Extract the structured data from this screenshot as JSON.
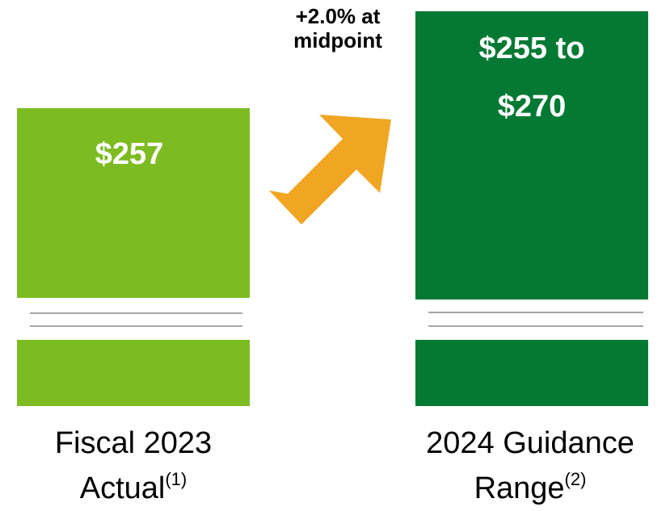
{
  "annotation": [
    "+2.0% at",
    "midpoint"
  ],
  "bars": [
    {
      "value_label": [
        "$257"
      ],
      "category": [
        "Fiscal 2023",
        "Actual"
      ],
      "note": "(1)"
    },
    {
      "value_label": [
        "$255 to",
        "$270"
      ],
      "category": [
        "2024 Guidance",
        "Range"
      ],
      "note": "(2)"
    }
  ]
}
